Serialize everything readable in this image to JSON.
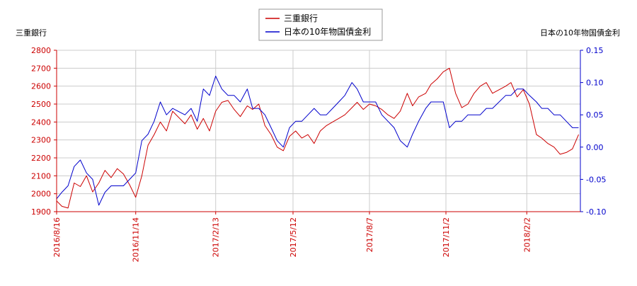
{
  "chart_data": {
    "type": "line",
    "left_axis_title": "三重銀行",
    "right_axis_title": "日本の10年物国債金利",
    "legend": [
      "三重銀行",
      "日本の10年物国債金利"
    ],
    "legend_placement": "top-center",
    "colors": {
      "left_series": "#cc0000",
      "right_series": "#0000cc",
      "grid": "#cccccc"
    },
    "grid": true,
    "x_ticks": [
      "2016/8/16",
      "2016/11/14",
      "2017/2/13",
      "2017/5/12",
      "2017/8/7",
      "2017/11/2",
      "2018/2/2"
    ],
    "x_range": [
      "2016-08-16",
      "2018-04-04"
    ],
    "left_ylim": [
      1900,
      2800
    ],
    "left_ticks": [
      "1900",
      "2000",
      "2100",
      "2200",
      "2300",
      "2400",
      "2500",
      "2600",
      "2700",
      "2800"
    ],
    "right_ylim": [
      -0.1,
      0.15
    ],
    "right_ticks": [
      "-0.10",
      "-0.05",
      "0.00",
      "0.05",
      "0.10",
      "0.15"
    ],
    "series": [
      {
        "name": "三重銀行",
        "axis": "left",
        "x": [
          "2016-08-16",
          "2016-08-22",
          "2016-08-29",
          "2016-09-05",
          "2016-09-12",
          "2016-09-19",
          "2016-09-26",
          "2016-10-03",
          "2016-10-10",
          "2016-10-17",
          "2016-10-24",
          "2016-10-31",
          "2016-11-07",
          "2016-11-14",
          "2016-11-21",
          "2016-11-28",
          "2016-12-05",
          "2016-12-12",
          "2016-12-19",
          "2016-12-26",
          "2017-01-09",
          "2017-01-16",
          "2017-01-23",
          "2017-01-30",
          "2017-02-06",
          "2017-02-13",
          "2017-02-20",
          "2017-02-27",
          "2017-03-06",
          "2017-03-13",
          "2017-03-21",
          "2017-03-27",
          "2017-04-03",
          "2017-04-10",
          "2017-04-17",
          "2017-04-24",
          "2017-05-01",
          "2017-05-08",
          "2017-05-15",
          "2017-05-22",
          "2017-05-29",
          "2017-06-05",
          "2017-06-12",
          "2017-06-19",
          "2017-06-26",
          "2017-07-03",
          "2017-07-10",
          "2017-07-18",
          "2017-07-24",
          "2017-07-31",
          "2017-08-07",
          "2017-08-14",
          "2017-08-21",
          "2017-08-28",
          "2017-09-04",
          "2017-09-11",
          "2017-09-19",
          "2017-09-25",
          "2017-10-02",
          "2017-10-10",
          "2017-10-16",
          "2017-10-23",
          "2017-10-30",
          "2017-11-06",
          "2017-11-13",
          "2017-11-20",
          "2017-11-27",
          "2017-12-04",
          "2017-12-11",
          "2017-12-18",
          "2017-12-25",
          "2018-01-09",
          "2018-01-15",
          "2018-01-22",
          "2018-01-29",
          "2018-02-05",
          "2018-02-13",
          "2018-02-19",
          "2018-02-26",
          "2018-03-05",
          "2018-03-12",
          "2018-03-19",
          "2018-03-26",
          "2018-04-02"
        ],
        "y": [
          1960,
          1930,
          1920,
          2060,
          2040,
          2100,
          2010,
          2060,
          2130,
          2090,
          2140,
          2110,
          2050,
          1980,
          2100,
          2270,
          2330,
          2400,
          2350,
          2460,
          2390,
          2440,
          2360,
          2420,
          2350,
          2460,
          2510,
          2520,
          2470,
          2430,
          2490,
          2470,
          2500,
          2380,
          2330,
          2260,
          2240,
          2320,
          2350,
          2310,
          2330,
          2280,
          2350,
          2380,
          2400,
          2420,
          2440,
          2480,
          2510,
          2470,
          2500,
          2490,
          2470,
          2440,
          2420,
          2460,
          2560,
          2490,
          2540,
          2560,
          2610,
          2640,
          2680,
          2700,
          2560,
          2480,
          2500,
          2560,
          2600,
          2620,
          2560,
          2600,
          2620,
          2540,
          2580,
          2500,
          2330,
          2310,
          2280,
          2260,
          2220,
          2230,
          2250,
          2330
        ]
      },
      {
        "name": "日本の10年物国債金利",
        "axis": "right",
        "x": [
          "2016-08-16",
          "2016-08-22",
          "2016-08-29",
          "2016-09-05",
          "2016-09-12",
          "2016-09-19",
          "2016-09-26",
          "2016-10-03",
          "2016-10-10",
          "2016-10-17",
          "2016-10-24",
          "2016-10-31",
          "2016-11-07",
          "2016-11-14",
          "2016-11-21",
          "2016-11-28",
          "2016-12-05",
          "2016-12-12",
          "2016-12-19",
          "2016-12-26",
          "2017-01-09",
          "2017-01-16",
          "2017-01-23",
          "2017-01-30",
          "2017-02-06",
          "2017-02-13",
          "2017-02-20",
          "2017-02-27",
          "2017-03-06",
          "2017-03-13",
          "2017-03-21",
          "2017-03-27",
          "2017-04-03",
          "2017-04-10",
          "2017-04-17",
          "2017-04-24",
          "2017-05-01",
          "2017-05-08",
          "2017-05-15",
          "2017-05-22",
          "2017-05-29",
          "2017-06-05",
          "2017-06-12",
          "2017-06-19",
          "2017-06-26",
          "2017-07-03",
          "2017-07-10",
          "2017-07-18",
          "2017-07-24",
          "2017-07-31",
          "2017-08-07",
          "2017-08-14",
          "2017-08-21",
          "2017-08-28",
          "2017-09-04",
          "2017-09-11",
          "2017-09-19",
          "2017-09-25",
          "2017-10-02",
          "2017-10-10",
          "2017-10-16",
          "2017-10-23",
          "2017-10-30",
          "2017-11-06",
          "2017-11-13",
          "2017-11-20",
          "2017-11-27",
          "2017-12-04",
          "2017-12-11",
          "2017-12-18",
          "2017-12-25",
          "2018-01-09",
          "2018-01-15",
          "2018-01-22",
          "2018-01-29",
          "2018-02-05",
          "2018-02-13",
          "2018-02-19",
          "2018-02-26",
          "2018-03-05",
          "2018-03-12",
          "2018-03-19",
          "2018-03-26",
          "2018-04-02"
        ],
        "y": [
          -0.08,
          -0.07,
          -0.06,
          -0.03,
          -0.02,
          -0.04,
          -0.05,
          -0.09,
          -0.07,
          -0.06,
          -0.06,
          -0.06,
          -0.05,
          -0.04,
          0.01,
          0.02,
          0.04,
          0.07,
          0.05,
          0.06,
          0.05,
          0.06,
          0.04,
          0.09,
          0.08,
          0.11,
          0.09,
          0.08,
          0.08,
          0.07,
          0.09,
          0.06,
          0.06,
          0.05,
          0.03,
          0.01,
          0.0,
          0.03,
          0.04,
          0.04,
          0.05,
          0.06,
          0.05,
          0.05,
          0.06,
          0.07,
          0.08,
          0.1,
          0.09,
          0.07,
          0.07,
          0.07,
          0.05,
          0.04,
          0.03,
          0.01,
          0.0,
          0.02,
          0.04,
          0.06,
          0.07,
          0.07,
          0.07,
          0.03,
          0.04,
          0.04,
          0.05,
          0.05,
          0.05,
          0.06,
          0.06,
          0.08,
          0.08,
          0.09,
          0.09,
          0.08,
          0.07,
          0.06,
          0.06,
          0.05,
          0.05,
          0.04,
          0.03,
          0.03
        ]
      }
    ]
  }
}
